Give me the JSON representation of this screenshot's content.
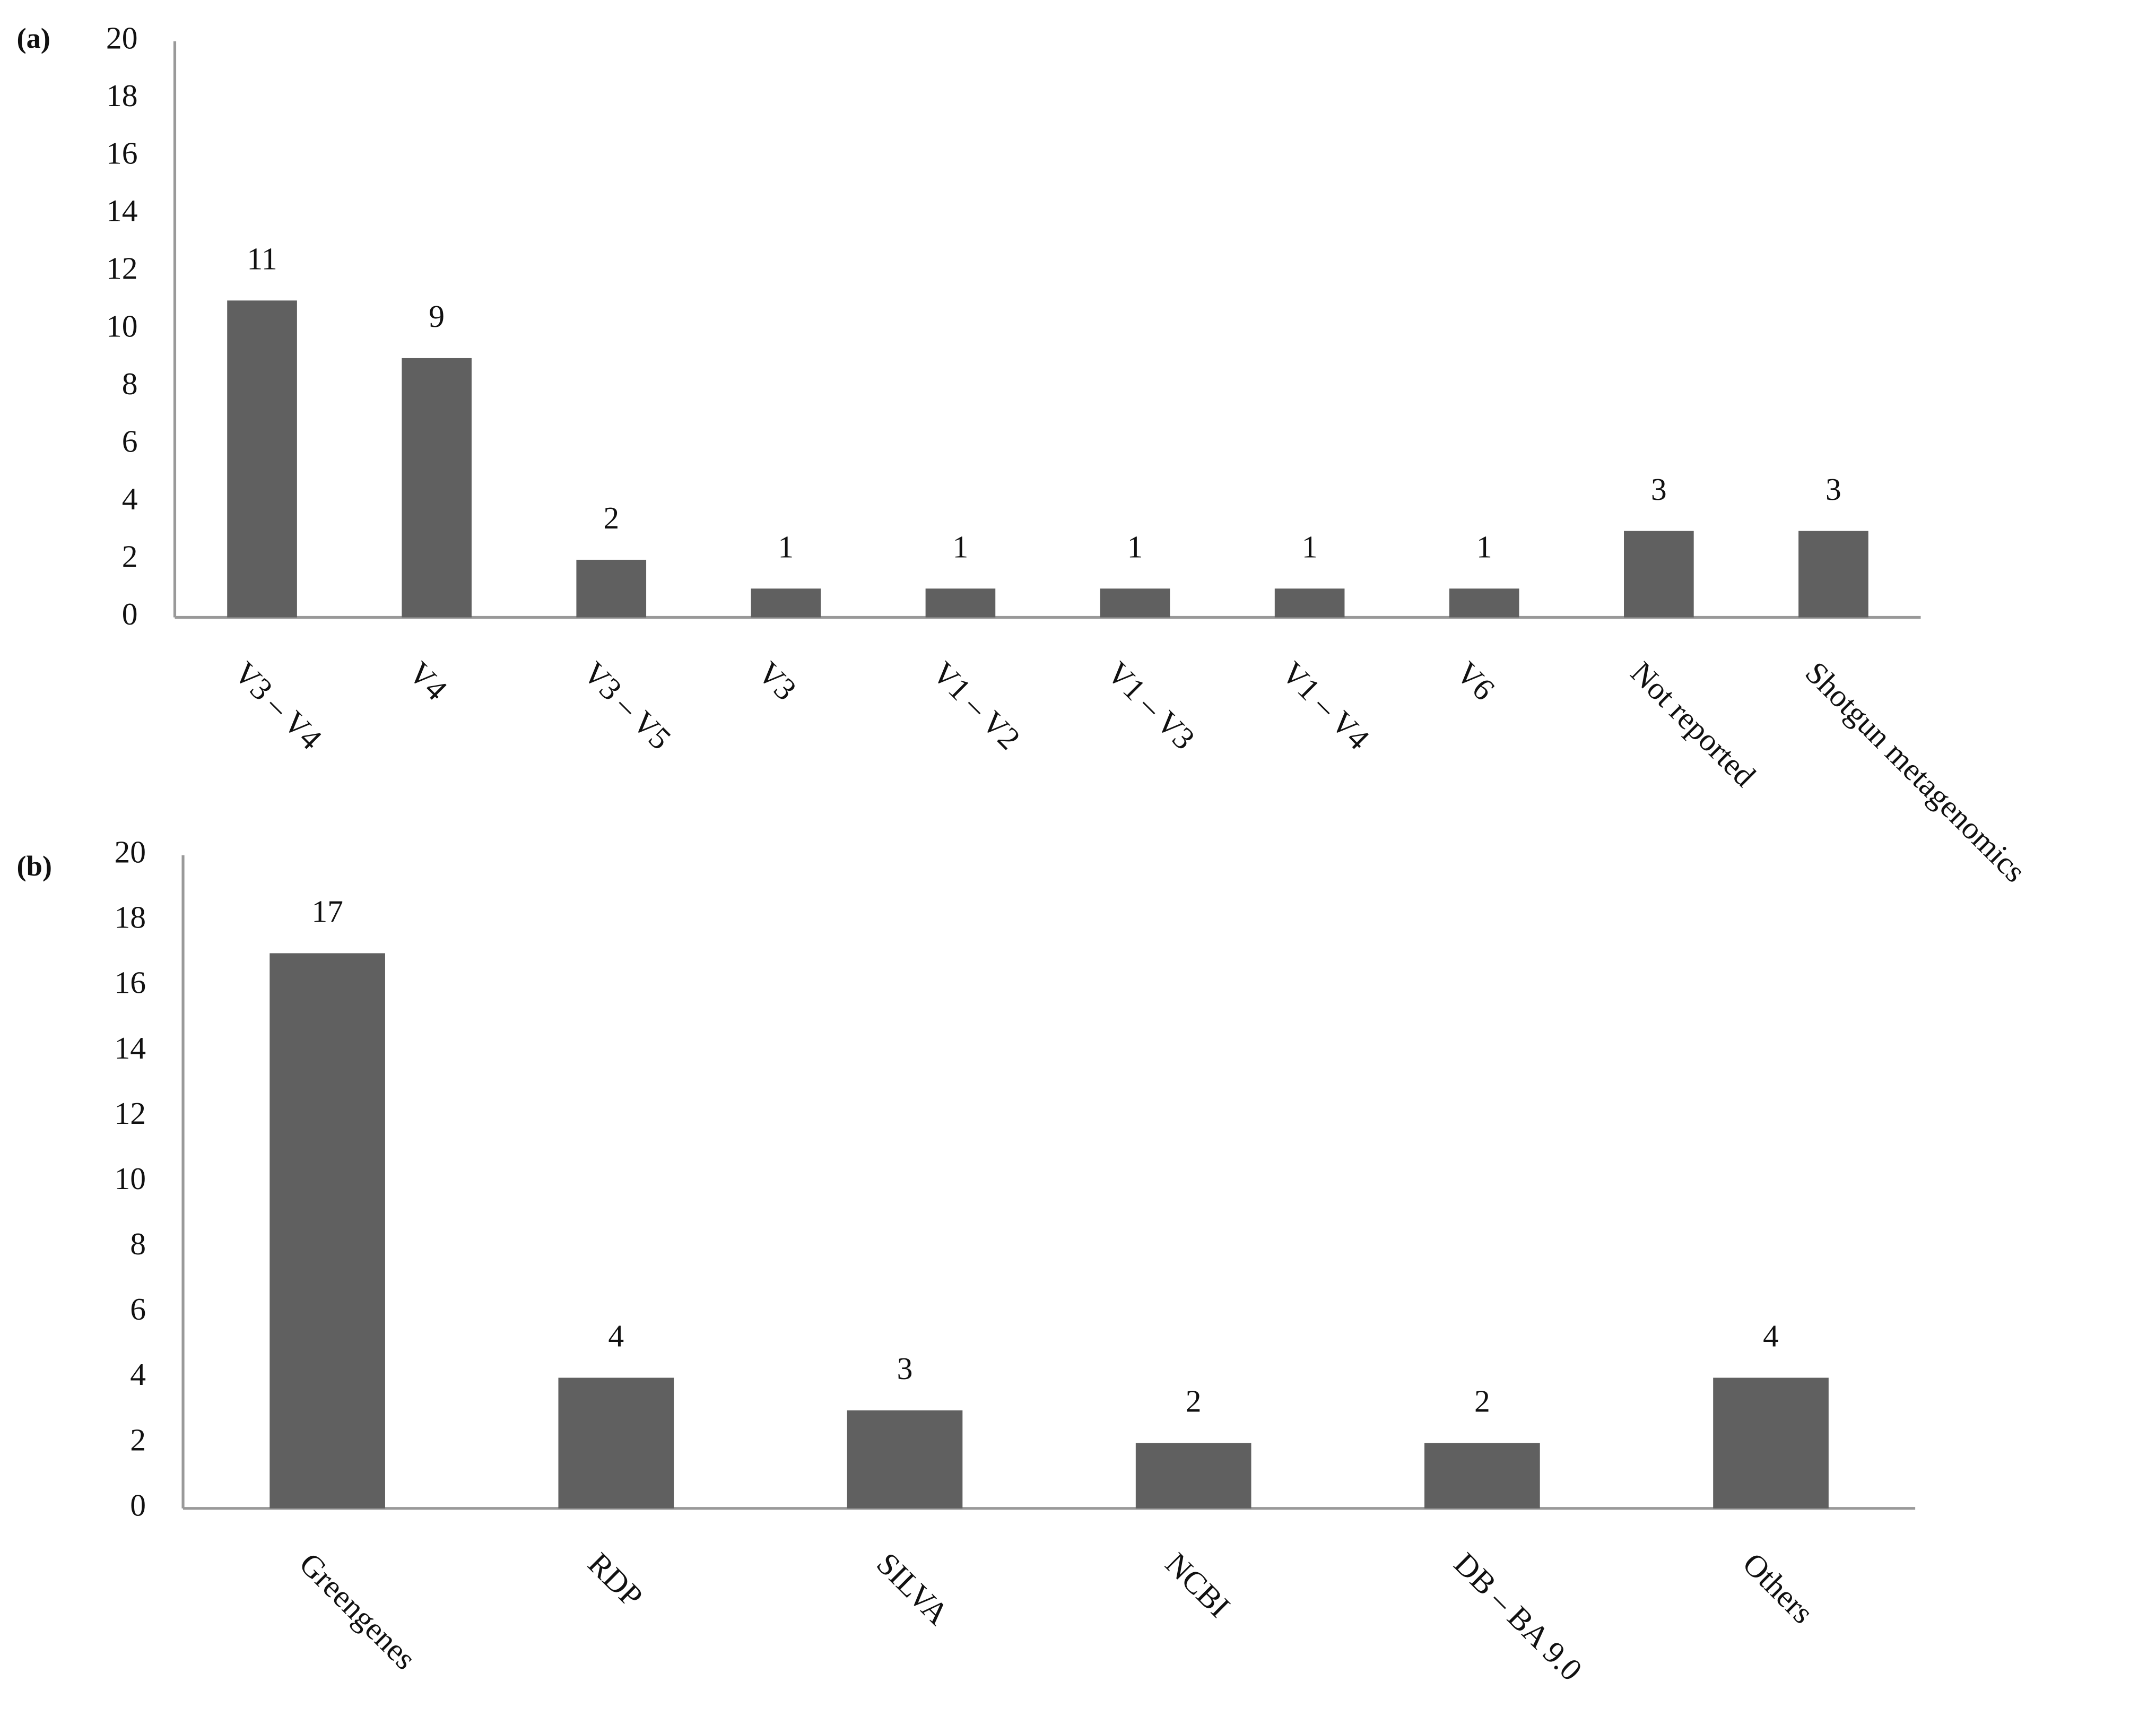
{
  "chart_data": [
    {
      "type": "bar",
      "panel_label": "(a)",
      "categories": [
        "V3 – V4",
        "V4",
        "V3 – V5",
        "V3",
        "V1 – V2",
        "V1 – V3",
        "V1 – V4",
        "V6",
        "Not reported",
        "Shotgun metagenomics"
      ],
      "values": [
        11,
        9,
        2,
        1,
        1,
        1,
        1,
        1,
        3,
        3
      ],
      "color": "#606060",
      "ylim": [
        0,
        20
      ],
      "yticks": [
        0,
        2,
        4,
        6,
        8,
        10,
        12,
        14,
        16,
        18,
        20
      ],
      "grid": false
    },
    {
      "type": "bar",
      "panel_label": "(b)",
      "categories": [
        "Greengenes",
        "RDP",
        "SILVA",
        "NCBI",
        "DB – BA 9.0",
        "Others"
      ],
      "values": [
        17,
        4,
        3,
        2,
        2,
        4
      ],
      "color": "#606060",
      "ylim": [
        0,
        20
      ],
      "yticks": [
        0,
        2,
        4,
        6,
        8,
        10,
        12,
        14,
        16,
        18,
        20
      ],
      "grid": false
    }
  ]
}
